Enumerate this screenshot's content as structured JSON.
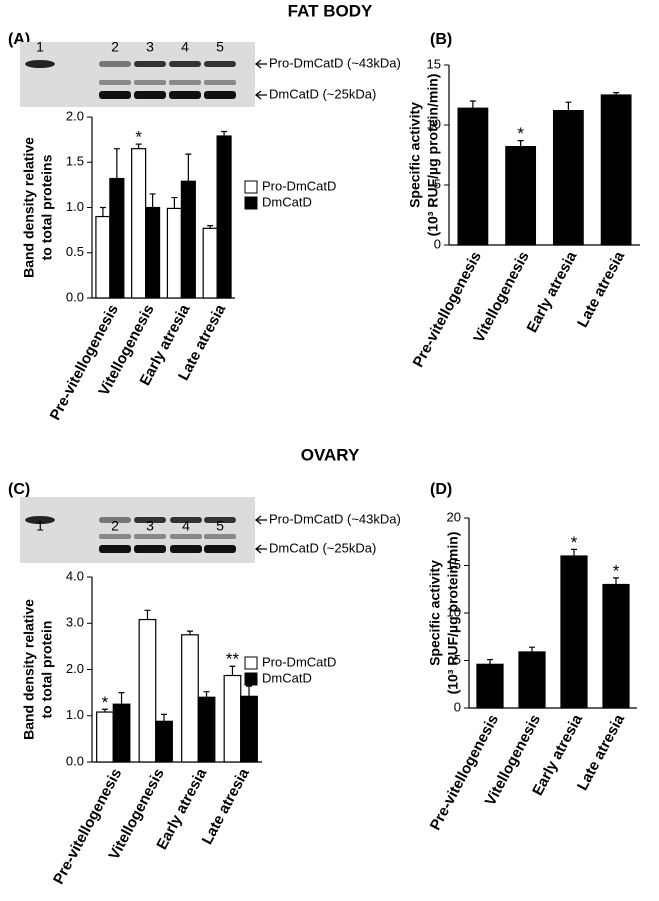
{
  "sections": [
    {
      "title": "FAT BODY"
    },
    {
      "title": "OVARY"
    }
  ],
  "chart_data": [
    {
      "type": "bar",
      "panel_label": "(A)",
      "blot": {
        "lanes": [
          "1",
          "2",
          "3",
          "4",
          "5"
        ],
        "bands": [
          "Pro-DmCatD (~43kDa)",
          "DmCatD (~25kDa)"
        ]
      },
      "ylabel": [
        "Band density relative",
        "to total proteins"
      ],
      "categories": [
        "Pre-vitellogenesis",
        "Vitellogenesis",
        "Early atresia",
        "Late atresia"
      ],
      "series": [
        {
          "name": "Pro-DmCatD",
          "color": "#ffffff",
          "values": [
            0.9,
            1.65,
            0.99,
            0.77
          ],
          "errors": [
            0.1,
            0.05,
            0.12,
            0.03
          ]
        },
        {
          "name": "DmCatD",
          "color": "#000000",
          "values": [
            1.32,
            1.0,
            1.29,
            1.79
          ],
          "errors": [
            0.33,
            0.15,
            0.3,
            0.05
          ]
        }
      ],
      "ylim": [
        0,
        2
      ],
      "yticks": [
        {
          "value": 0,
          "label": "0.0"
        },
        0.5,
        {
          "value": 1,
          "label": "1.0"
        },
        1.5,
        {
          "value": 2,
          "label": "2.0"
        }
      ],
      "annotations": [
        {
          "text": "*",
          "category": "Vitellogenesis",
          "series": "Pro-DmCatD"
        }
      ]
    },
    {
      "type": "bar",
      "panel_label": "(B)",
      "ylabel": [
        "Specific activity",
        "(10³ RUF/µg protein/min)"
      ],
      "categories": [
        "Pre-vitellogenesis",
        "Vitellogenesis",
        "Early atresia",
        "Late atresia"
      ],
      "color": "#000000",
      "values": [
        11.4,
        8.2,
        11.2,
        12.5
      ],
      "errors": [
        0.6,
        0.5,
        0.7,
        0.2
      ],
      "ylim": [
        0,
        15
      ],
      "yticks": [
        0,
        5,
        10,
        15
      ],
      "annotations": [
        {
          "text": "*",
          "category": "Vitellogenesis"
        }
      ]
    },
    {
      "type": "bar",
      "panel_label": "(C)",
      "blot": {
        "lanes": [
          "1",
          "2",
          "3",
          "4",
          "5"
        ],
        "bands": [
          "Pro-DmCatD (~43kDa)",
          "DmCatD (~25kDa)"
        ]
      },
      "ylabel": [
        "Band density relative",
        "to  total protein"
      ],
      "categories": [
        "Pre-vitellogenesis",
        "Vitellogenesis",
        "Early atresia",
        "Late atresia"
      ],
      "series": [
        {
          "name": "Pro-DmCatD",
          "color": "#ffffff",
          "values": [
            1.08,
            3.08,
            2.75,
            1.87
          ],
          "errors": [
            0.06,
            0.2,
            0.08,
            0.2
          ]
        },
        {
          "name": "DmCatD",
          "color": "#000000",
          "values": [
            1.25,
            0.88,
            1.4,
            1.42
          ],
          "errors": [
            0.25,
            0.15,
            0.12,
            0.22
          ]
        }
      ],
      "ylim": [
        0,
        4
      ],
      "yticks": [
        {
          "value": 0,
          "label": "0.0"
        },
        {
          "value": 1,
          "label": "1.0"
        },
        {
          "value": 2,
          "label": "2.0"
        },
        {
          "value": 3,
          "label": "3.0"
        },
        {
          "value": 4,
          "label": "4.0"
        }
      ],
      "annotations": [
        {
          "text": "*",
          "category": "Pre-vitellogenesis",
          "series": "Pro-DmCatD"
        },
        {
          "text": "**",
          "category": "Late atresia",
          "series": "Pro-DmCatD"
        }
      ]
    },
    {
      "type": "bar",
      "panel_label": "(D)",
      "ylabel": [
        "Specific activity",
        "(10³ RUF/µg protein/min)"
      ],
      "categories": [
        "Pre-vitellogenesis",
        "Vitellogenesis",
        "Early atresia",
        "Late atresia"
      ],
      "color": "#000000",
      "values": [
        4.6,
        5.9,
        16.0,
        13.0
      ],
      "errors": [
        0.5,
        0.5,
        0.7,
        0.7
      ],
      "ylim": [
        0,
        20
      ],
      "yticks": [
        0,
        5,
        10,
        15,
        20
      ],
      "annotations": [
        {
          "text": "*",
          "category": "Early atresia"
        },
        {
          "text": "*",
          "category": "Late atresia"
        }
      ]
    }
  ]
}
